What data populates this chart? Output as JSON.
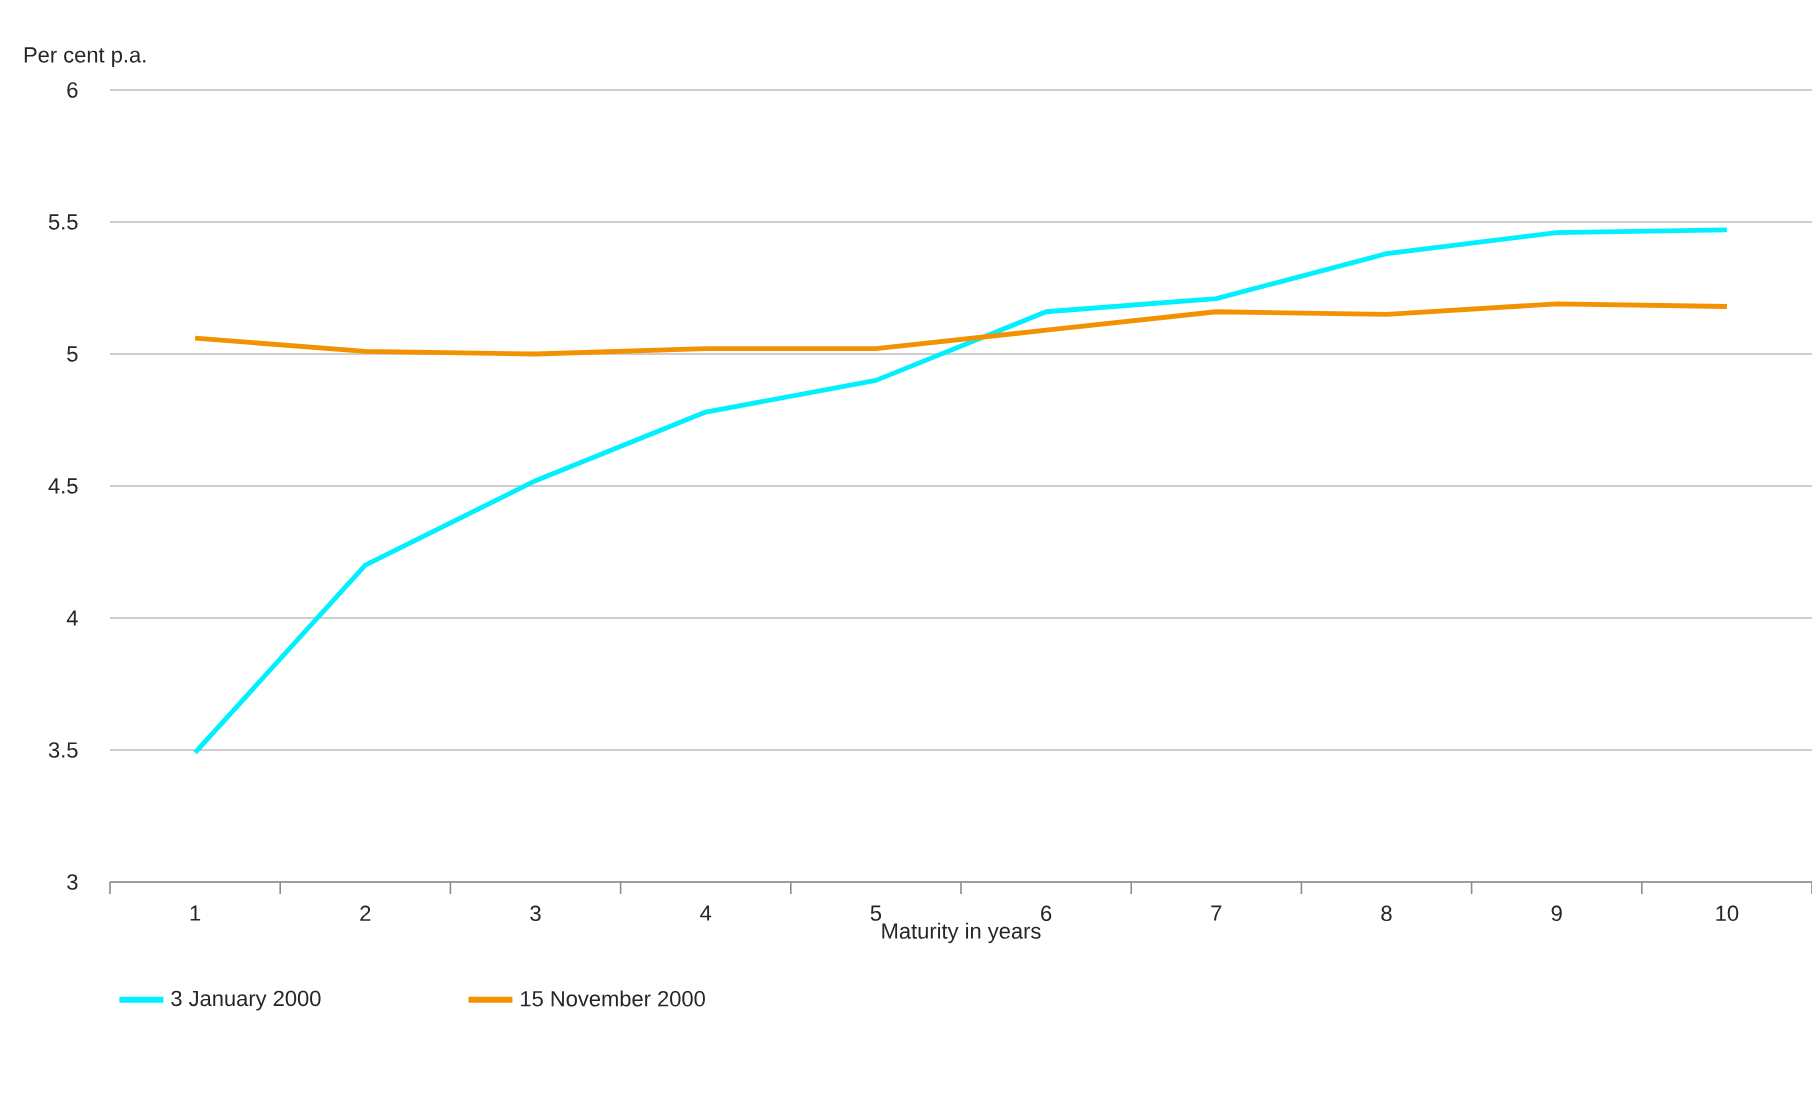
{
  "chart_data": {
    "type": "line",
    "ylabel": "Per cent p.a.",
    "xlabel": "Maturity in years",
    "categories": [
      "1",
      "2",
      "3",
      "4",
      "5",
      "6",
      "7",
      "8",
      "9",
      "10"
    ],
    "series": [
      {
        "name": "3 January 2000",
        "color": "#00f0ff",
        "values": [
          3.49,
          4.2,
          4.52,
          4.78,
          4.9,
          5.16,
          5.21,
          5.38,
          5.46,
          5.47
        ]
      },
      {
        "name": "15 November 2000",
        "color": "#f39200",
        "values": [
          5.06,
          5.01,
          5.0,
          5.02,
          5.02,
          5.09,
          5.16,
          5.15,
          5.19,
          5.18
        ]
      }
    ],
    "ylim": [
      3,
      6
    ],
    "yticks": [
      3,
      3.5,
      4,
      4.5,
      5,
      5.5,
      6
    ],
    "grid": "y",
    "legend": "bottom",
    "marker": "none",
    "line_style": "solid"
  }
}
